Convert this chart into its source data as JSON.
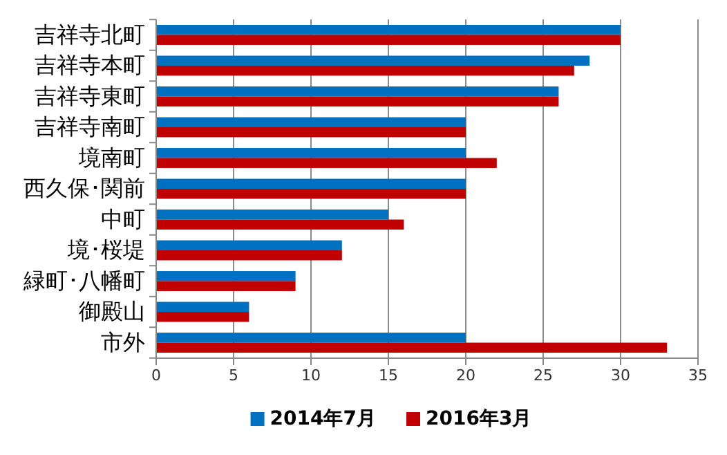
{
  "chart_data": {
    "type": "bar",
    "orientation": "horizontal",
    "categories": [
      "吉祥寺北町",
      "吉祥寺本町",
      "吉祥寺東町",
      "吉祥寺南町",
      "境南町",
      "西久保･関前",
      "中町",
      "境･桜堤",
      "緑町･八幡町",
      "御殿山",
      "市外"
    ],
    "series": [
      {
        "name": "2014年7月",
        "color": "#0070c0",
        "values": [
          30,
          28,
          26,
          20,
          20,
          20,
          15,
          12,
          9,
          6,
          20
        ]
      },
      {
        "name": "2016年3月",
        "color": "#c00000",
        "values": [
          30,
          27,
          26,
          20,
          22,
          20,
          16,
          12,
          9,
          6,
          33
        ]
      }
    ],
    "xlim": [
      0,
      35
    ],
    "xticks": [
      0,
      5,
      10,
      15,
      20,
      25,
      30,
      35
    ],
    "grid": "x",
    "legend": "bottom"
  }
}
